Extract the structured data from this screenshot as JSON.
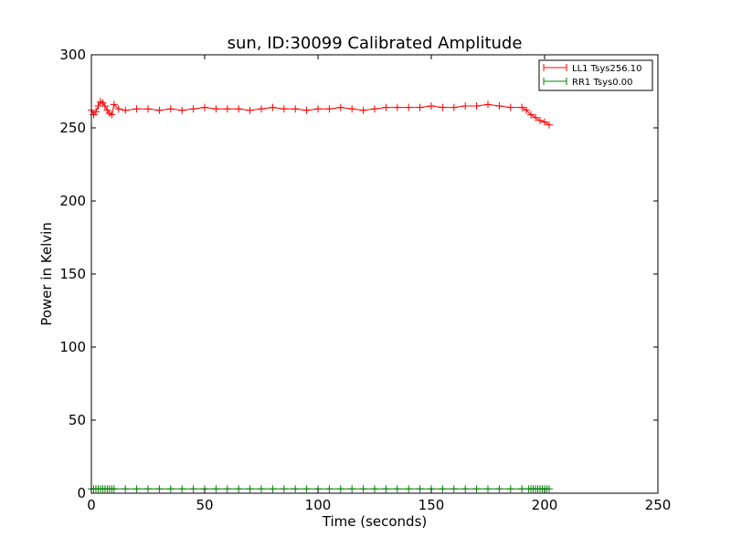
{
  "chart_data": {
    "type": "line",
    "title": "sun, ID:30099 Calibrated Amplitude",
    "xlabel": "Time (seconds)",
    "ylabel": "Power in Kelvin",
    "xlim": [
      0,
      250
    ],
    "ylim": [
      0,
      300
    ],
    "xticks": [
      "0",
      "50",
      "100",
      "150",
      "200",
      "250"
    ],
    "yticks": [
      "0",
      "50",
      "100",
      "150",
      "200",
      "250",
      "300"
    ],
    "grid": false,
    "legend_position": "top-right",
    "marker": "+",
    "series": [
      {
        "name": "LL1 Tsys256.10",
        "color": "#ff0000",
        "x": [
          0,
          1,
          2,
          3,
          4,
          5,
          6,
          7,
          8,
          9,
          10,
          12,
          15,
          20,
          25,
          30,
          35,
          40,
          45,
          50,
          55,
          60,
          65,
          70,
          75,
          80,
          85,
          90,
          95,
          100,
          105,
          110,
          115,
          120,
          125,
          130,
          135,
          140,
          145,
          150,
          155,
          160,
          165,
          170,
          175,
          180,
          185,
          190,
          192,
          194,
          196,
          198,
          200,
          202
        ],
        "y": [
          262,
          259,
          261,
          265,
          268,
          267,
          265,
          262,
          260,
          259,
          266,
          263,
          262,
          263,
          263,
          262,
          263,
          262,
          263,
          264,
          263,
          263,
          263,
          262,
          263,
          264,
          263,
          263,
          262,
          263,
          263,
          264,
          263,
          262,
          263,
          264,
          264,
          264,
          264,
          265,
          264,
          264,
          265,
          265,
          266,
          265,
          264,
          264,
          262,
          259,
          257,
          255,
          254,
          252
        ]
      },
      {
        "name": "RR1 Tsys0.00",
        "color": "#008000",
        "x": [
          0,
          1,
          2,
          3,
          4,
          5,
          6,
          7,
          8,
          9,
          10,
          15,
          20,
          25,
          30,
          35,
          40,
          45,
          50,
          55,
          60,
          65,
          70,
          75,
          80,
          85,
          90,
          95,
          100,
          105,
          110,
          115,
          120,
          125,
          130,
          135,
          140,
          145,
          150,
          155,
          160,
          165,
          170,
          175,
          180,
          185,
          190,
          193,
          194,
          195,
          196,
          197,
          198,
          199,
          200,
          201,
          202
        ],
        "y": [
          3,
          3,
          3,
          3,
          3,
          3,
          3,
          3,
          3,
          3,
          3,
          3,
          3,
          3,
          3,
          3,
          3,
          3,
          3,
          3,
          3,
          3,
          3,
          3,
          3,
          3,
          3,
          3,
          3,
          3,
          3,
          3,
          3,
          3,
          3,
          3,
          3,
          3,
          3,
          3,
          3,
          3,
          3,
          3,
          3,
          3,
          3,
          3,
          3,
          3,
          3,
          3,
          3,
          3,
          3,
          3,
          3
        ]
      }
    ]
  }
}
